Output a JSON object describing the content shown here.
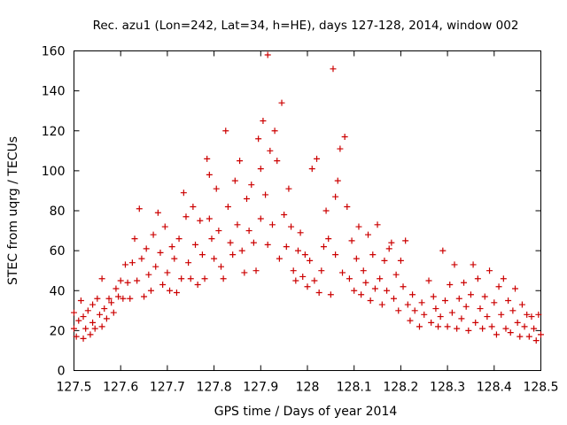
{
  "chart_data": {
    "type": "scatter",
    "title": "Rec. azu1 (Lon=242, Lat=34, h=HE), days 127-128, 2014, window 002",
    "xlabel": "GPS time / Days of year 2014",
    "ylabel": "STEC from uqrg / TECUs",
    "xlim": [
      127.5,
      128.5
    ],
    "ylim": [
      0,
      160
    ],
    "xticks": [
      127.5,
      127.6,
      127.7,
      127.8,
      127.9,
      128,
      128.1,
      128.2,
      128.3,
      128.4,
      128.5
    ],
    "xtick_labels": [
      "127.5",
      "127.6",
      "127.7",
      "127.8",
      "127.9",
      "128",
      "128.1",
      "128.2",
      "128.3",
      "128.4",
      "128.5"
    ],
    "yticks": [
      0,
      20,
      40,
      60,
      80,
      100,
      120,
      140,
      160
    ],
    "ytick_labels": [
      "0",
      "20",
      "40",
      "60",
      "80",
      "100",
      "120",
      "140",
      "160"
    ],
    "marker": "+",
    "color": "#cc0000",
    "series": [
      {
        "name": "STEC",
        "points": [
          [
            127.5,
            21
          ],
          [
            127.5,
            29
          ],
          [
            127.505,
            17
          ],
          [
            127.51,
            25
          ],
          [
            127.515,
            35
          ],
          [
            127.52,
            16
          ],
          [
            127.52,
            27
          ],
          [
            127.525,
            21
          ],
          [
            127.53,
            30
          ],
          [
            127.535,
            18
          ],
          [
            127.54,
            24
          ],
          [
            127.54,
            33
          ],
          [
            127.545,
            21
          ],
          [
            127.55,
            36
          ],
          [
            127.555,
            28
          ],
          [
            127.56,
            22
          ],
          [
            127.56,
            46
          ],
          [
            127.565,
            31
          ],
          [
            127.57,
            26
          ],
          [
            127.575,
            36
          ],
          [
            127.58,
            34
          ],
          [
            127.585,
            29
          ],
          [
            127.59,
            41
          ],
          [
            127.595,
            37
          ],
          [
            127.6,
            45
          ],
          [
            127.605,
            36
          ],
          [
            127.61,
            53
          ],
          [
            127.615,
            44
          ],
          [
            127.62,
            36
          ],
          [
            127.625,
            54
          ],
          [
            127.63,
            66
          ],
          [
            127.635,
            45
          ],
          [
            127.64,
            81
          ],
          [
            127.645,
            56
          ],
          [
            127.65,
            37
          ],
          [
            127.655,
            61
          ],
          [
            127.66,
            48
          ],
          [
            127.665,
            40
          ],
          [
            127.67,
            68
          ],
          [
            127.675,
            52
          ],
          [
            127.68,
            79
          ],
          [
            127.685,
            59
          ],
          [
            127.69,
            43
          ],
          [
            127.695,
            72
          ],
          [
            127.7,
            49
          ],
          [
            127.705,
            40
          ],
          [
            127.71,
            62
          ],
          [
            127.715,
            56
          ],
          [
            127.72,
            39
          ],
          [
            127.725,
            66
          ],
          [
            127.73,
            46
          ],
          [
            127.735,
            89
          ],
          [
            127.74,
            77
          ],
          [
            127.745,
            54
          ],
          [
            127.75,
            46
          ],
          [
            127.755,
            82
          ],
          [
            127.76,
            63
          ],
          [
            127.765,
            43
          ],
          [
            127.77,
            75
          ],
          [
            127.775,
            58
          ],
          [
            127.78,
            46
          ],
          [
            127.785,
            106
          ],
          [
            127.79,
            76
          ],
          [
            127.79,
            98
          ],
          [
            127.795,
            66
          ],
          [
            127.8,
            56
          ],
          [
            127.805,
            91
          ],
          [
            127.81,
            70
          ],
          [
            127.815,
            52
          ],
          [
            127.82,
            46
          ],
          [
            127.825,
            120
          ],
          [
            127.83,
            82
          ],
          [
            127.835,
            64
          ],
          [
            127.84,
            58
          ],
          [
            127.845,
            95
          ],
          [
            127.85,
            73
          ],
          [
            127.855,
            105
          ],
          [
            127.86,
            60
          ],
          [
            127.865,
            49
          ],
          [
            127.87,
            86
          ],
          [
            127.875,
            70
          ],
          [
            127.88,
            93
          ],
          [
            127.885,
            64
          ],
          [
            127.89,
            50
          ],
          [
            127.895,
            116
          ],
          [
            127.9,
            76
          ],
          [
            127.9,
            101
          ],
          [
            127.905,
            125
          ],
          [
            127.91,
            88
          ],
          [
            127.915,
            158
          ],
          [
            127.915,
            63
          ],
          [
            127.92,
            110
          ],
          [
            127.925,
            73
          ],
          [
            127.93,
            120
          ],
          [
            127.935,
            105
          ],
          [
            127.94,
            56
          ],
          [
            127.945,
            134
          ],
          [
            127.95,
            78
          ],
          [
            127.955,
            62
          ],
          [
            127.96,
            91
          ],
          [
            127.965,
            72
          ],
          [
            127.97,
            50
          ],
          [
            127.975,
            45
          ],
          [
            127.98,
            60
          ],
          [
            127.985,
            69
          ],
          [
            127.99,
            47
          ],
          [
            127.995,
            58
          ],
          [
            128,
            42
          ],
          [
            128.005,
            55
          ],
          [
            128.01,
            101
          ],
          [
            128.015,
            45
          ],
          [
            128.02,
            106
          ],
          [
            128.025,
            39
          ],
          [
            128.03,
            50
          ],
          [
            128.035,
            62
          ],
          [
            128.04,
            80
          ],
          [
            128.045,
            66
          ],
          [
            128.05,
            38
          ],
          [
            128.055,
            151
          ],
          [
            128.06,
            58
          ],
          [
            128.06,
            87
          ],
          [
            128.065,
            95
          ],
          [
            128.07,
            111
          ],
          [
            128.075,
            49
          ],
          [
            128.08,
            117
          ],
          [
            128.085,
            82
          ],
          [
            128.09,
            46
          ],
          [
            128.095,
            65
          ],
          [
            128.1,
            40
          ],
          [
            128.105,
            56
          ],
          [
            128.11,
            72
          ],
          [
            128.115,
            38
          ],
          [
            128.12,
            50
          ],
          [
            128.125,
            44
          ],
          [
            128.13,
            68
          ],
          [
            128.135,
            35
          ],
          [
            128.14,
            58
          ],
          [
            128.145,
            41
          ],
          [
            128.15,
            73
          ],
          [
            128.155,
            46
          ],
          [
            128.16,
            33
          ],
          [
            128.165,
            55
          ],
          [
            128.17,
            40
          ],
          [
            128.175,
            61
          ],
          [
            128.18,
            64
          ],
          [
            128.185,
            36
          ],
          [
            128.19,
            48
          ],
          [
            128.195,
            30
          ],
          [
            128.2,
            55
          ],
          [
            128.205,
            42
          ],
          [
            128.21,
            65
          ],
          [
            128.215,
            33
          ],
          [
            128.22,
            25
          ],
          [
            128.225,
            38
          ],
          [
            128.23,
            30
          ],
          [
            128.24,
            22
          ],
          [
            128.245,
            34
          ],
          [
            128.25,
            28
          ],
          [
            128.26,
            45
          ],
          [
            128.265,
            24
          ],
          [
            128.27,
            37
          ],
          [
            128.275,
            31
          ],
          [
            128.28,
            22
          ],
          [
            128.285,
            27
          ],
          [
            128.29,
            60
          ],
          [
            128.295,
            35
          ],
          [
            128.3,
            22
          ],
          [
            128.305,
            43
          ],
          [
            128.31,
            29
          ],
          [
            128.315,
            53
          ],
          [
            128.32,
            21
          ],
          [
            128.325,
            36
          ],
          [
            128.33,
            26
          ],
          [
            128.335,
            44
          ],
          [
            128.34,
            32
          ],
          [
            128.345,
            20
          ],
          [
            128.35,
            38
          ],
          [
            128.355,
            53
          ],
          [
            128.36,
            24
          ],
          [
            128.365,
            46
          ],
          [
            128.37,
            31
          ],
          [
            128.375,
            21
          ],
          [
            128.38,
            37
          ],
          [
            128.385,
            27
          ],
          [
            128.39,
            50
          ],
          [
            128.395,
            22
          ],
          [
            128.4,
            34
          ],
          [
            128.405,
            18
          ],
          [
            128.41,
            42
          ],
          [
            128.415,
            28
          ],
          [
            128.42,
            46
          ],
          [
            128.425,
            21
          ],
          [
            128.43,
            35
          ],
          [
            128.435,
            19
          ],
          [
            128.44,
            30
          ],
          [
            128.445,
            41
          ],
          [
            128.45,
            24
          ],
          [
            128.455,
            17
          ],
          [
            128.46,
            33
          ],
          [
            128.465,
            22
          ],
          [
            128.47,
            28
          ],
          [
            128.475,
            17
          ],
          [
            128.48,
            27
          ],
          [
            128.485,
            21
          ],
          [
            128.49,
            15
          ],
          [
            128.495,
            28
          ],
          [
            128.5,
            18
          ]
        ]
      }
    ]
  }
}
